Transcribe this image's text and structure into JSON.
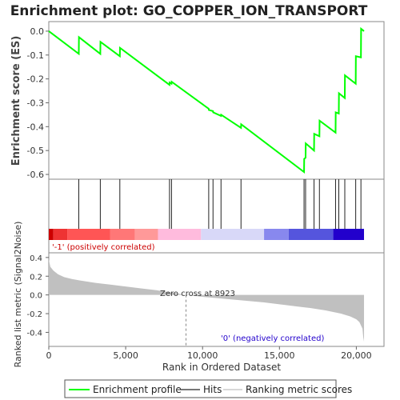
{
  "chart_data": {
    "type": "line",
    "title": "Enrichment plot: GO_COPPER_ION_TRANSPORT",
    "top_panel": {
      "ylabel": "Enrichment score (ES)",
      "ylim": [
        -0.62,
        0.04
      ],
      "yticks": [
        0.0,
        -0.1,
        -0.2,
        -0.3,
        -0.4,
        -0.5,
        -0.6
      ],
      "ytick_labels": [
        "0.0",
        "-0.1",
        "-0.2",
        "-0.3",
        "-0.4",
        "-0.5",
        "-0.6"
      ],
      "line_color": "#00ff00",
      "series": [
        {
          "name": "Enrichment profile",
          "x": [
            0,
            1950,
            1960,
            3350,
            3360,
            4620,
            4630,
            7850,
            7860,
            7980,
            7990,
            10400,
            10410,
            10680,
            10690,
            11200,
            11210,
            12500,
            12510,
            16600,
            16610,
            16700,
            16710,
            17250,
            17260,
            17600,
            17610,
            18650,
            18660,
            18860,
            18870,
            19250,
            19260,
            19960,
            19970,
            20300,
            20310,
            20500
          ],
          "y": [
            0.0,
            -0.095,
            -0.025,
            -0.095,
            -0.045,
            -0.105,
            -0.07,
            -0.225,
            -0.215,
            -0.22,
            -0.212,
            -0.325,
            -0.33,
            -0.335,
            -0.34,
            -0.355,
            -0.35,
            -0.405,
            -0.39,
            -0.59,
            -0.535,
            -0.53,
            -0.47,
            -0.5,
            -0.43,
            -0.44,
            -0.375,
            -0.425,
            -0.34,
            -0.345,
            -0.26,
            -0.28,
            -0.185,
            -0.22,
            -0.105,
            -0.11,
            0.01,
            0.0
          ]
        }
      ]
    },
    "hits_panel": {
      "hit_positions": [
        1950,
        3350,
        4620,
        7850,
        7980,
        10400,
        10680,
        11200,
        12500,
        16600,
        16700,
        17250,
        17600,
        18650,
        18860,
        19250,
        19960,
        20300
      ]
    },
    "color_bar": {
      "segments": [
        {
          "from": 0,
          "to": 300,
          "color": "#cc0000"
        },
        {
          "from": 300,
          "to": 1200,
          "color": "#ee3333"
        },
        {
          "from": 1200,
          "to": 4000,
          "color": "#ff5555"
        },
        {
          "from": 4000,
          "to": 5600,
          "color": "#ff7777"
        },
        {
          "from": 5600,
          "to": 7100,
          "color": "#ff9999"
        },
        {
          "from": 7100,
          "to": 9900,
          "color": "#ffbbdd"
        },
        {
          "from": 9900,
          "to": 14000,
          "color": "#d8d8f8"
        },
        {
          "from": 14000,
          "to": 15600,
          "color": "#8888ee"
        },
        {
          "from": 15600,
          "to": 18500,
          "color": "#5555dd"
        },
        {
          "from": 18500,
          "to": 20500,
          "color": "#2200cc"
        }
      ]
    },
    "bottom_panel": {
      "ylabel": "Ranked list metric (Signal2Noise)",
      "xlabel": "Rank in Ordered Dataset",
      "ylim": [
        -0.55,
        0.45
      ],
      "xlim": [
        0,
        21800
      ],
      "yticks": [
        0.4,
        0.2,
        0.0,
        -0.2,
        -0.4
      ],
      "ytick_labels": [
        "0.4",
        "0.2",
        "0.0",
        "-0.2",
        "-0.4"
      ],
      "xticks": [
        0,
        5000,
        10000,
        15000,
        20000
      ],
      "xtick_labels": [
        "0",
        "5,000",
        "10,000",
        "15,000",
        "20,000"
      ],
      "metric_curve": {
        "x": [
          0,
          100,
          300,
          600,
          1000,
          1500,
          2000,
          3000,
          4000,
          5000,
          6000,
          7000,
          8000,
          8923,
          10000,
          11000,
          12000,
          13000,
          14000,
          15000,
          16000,
          17000,
          18000,
          19000,
          19600,
          20000,
          20200,
          20400,
          20450,
          20500
        ],
        "y": [
          0.38,
          0.3,
          0.26,
          0.22,
          0.19,
          0.17,
          0.155,
          0.13,
          0.11,
          0.09,
          0.07,
          0.05,
          0.025,
          0.0,
          -0.02,
          -0.035,
          -0.05,
          -0.065,
          -0.08,
          -0.1,
          -0.12,
          -0.14,
          -0.165,
          -0.2,
          -0.23,
          -0.26,
          -0.29,
          -0.36,
          -0.45,
          -0.5
        ]
      },
      "zero_cross": 8923,
      "zero_cross_label": "Zero cross at 8923",
      "pos_label": "'-1' (positively correlated)",
      "neg_label": "'0' (negatively correlated)"
    },
    "legend": {
      "entries": [
        "Enrichment profile",
        "Hits",
        "Ranking metric scores"
      ],
      "colors": [
        "#00ff00",
        "#777777",
        "#d8d8d8"
      ]
    }
  }
}
